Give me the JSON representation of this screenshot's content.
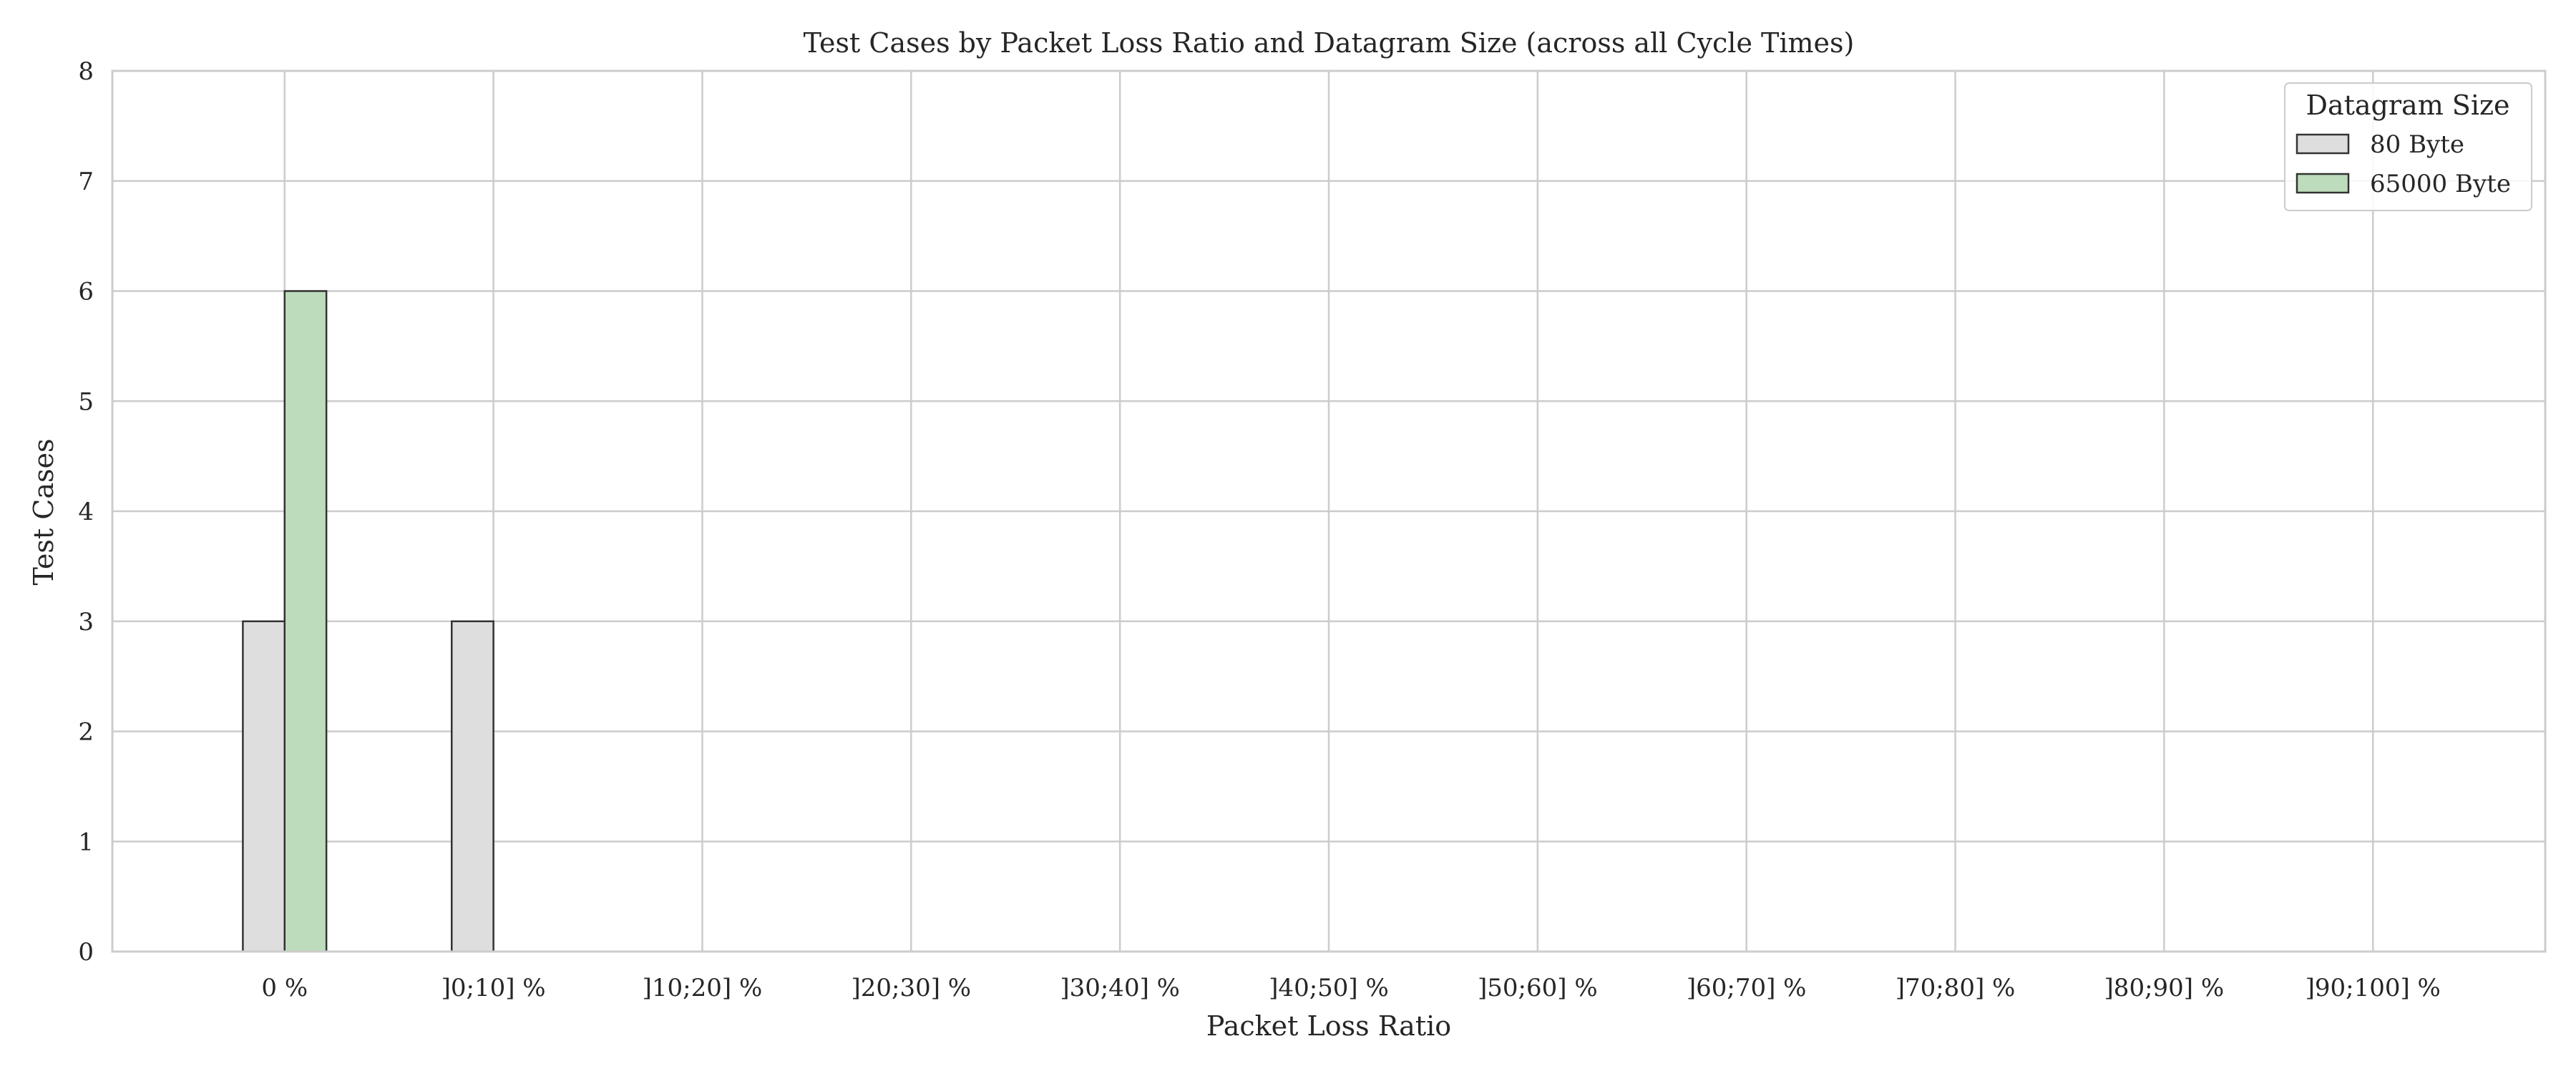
{
  "chart_data": {
    "type": "bar",
    "title": "Test Cases by Packet Loss Ratio and Datagram Size (across all Cycle Times)",
    "xlabel": "Packet Loss Ratio",
    "ylabel": "Test Cases",
    "categories": [
      "0 %",
      "]0;10] %",
      "]10;20] %",
      "]20;30] %",
      "]30;40] %",
      "]40;50] %",
      "]50;60] %",
      "]60;70] %",
      "]70;80] %",
      "]80;90] %",
      "]90;100] %"
    ],
    "series": [
      {
        "name": "80 Byte",
        "values": [
          3,
          3,
          0,
          0,
          0,
          0,
          0,
          0,
          0,
          0,
          0
        ],
        "color": "#dedede"
      },
      {
        "name": "65000 Byte",
        "values": [
          6,
          0,
          0,
          0,
          0,
          0,
          0,
          0,
          0,
          0,
          0
        ],
        "color": "#bcdcbb"
      }
    ],
    "ylim": [
      0,
      8
    ],
    "yticks": [
      0,
      1,
      2,
      3,
      4,
      5,
      6,
      7,
      8
    ],
    "grid": true,
    "legend": {
      "title": "Datagram Size",
      "placement": "top-right"
    },
    "colors": {
      "grid": "#cccccc",
      "spine": "#cccccc",
      "bar_edge": "#333333",
      "text": "#262626"
    }
  }
}
